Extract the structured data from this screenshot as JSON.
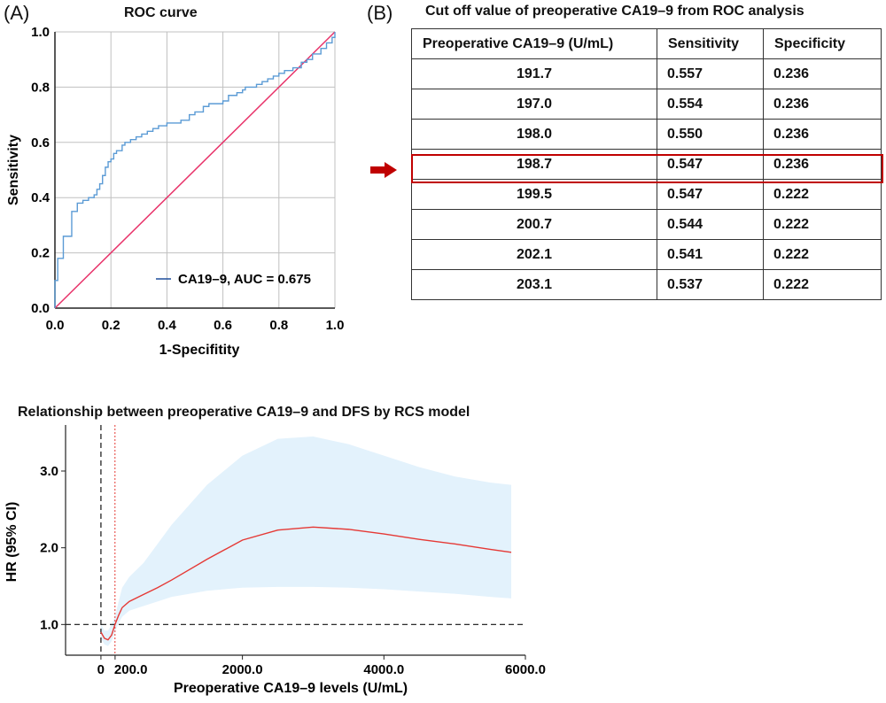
{
  "panels": {
    "a_label": "(A)",
    "b_label": "(B)"
  },
  "colors": {
    "roc_curve": "#5b9bd5",
    "diagonal": "#e8336a",
    "grid": "#c0c0c0",
    "highlight": "#c00000",
    "rcs_line": "#e53935",
    "ci_band": "#e3f2fc",
    "legend_line": "#1f4e9c",
    "reference_line": "#111111"
  },
  "chart_data": [
    {
      "type": "line",
      "title": "ROC curve",
      "xlabel": "1-Specifitity",
      "ylabel": "Sensitivity",
      "xlim": [
        0,
        1
      ],
      "ylim": [
        0,
        1
      ],
      "xticks": [
        "0.0",
        "0.2",
        "0.4",
        "0.6",
        "0.8",
        "1.0"
      ],
      "yticks": [
        "0.0",
        "0.2",
        "0.4",
        "0.6",
        "0.8",
        "1.0"
      ],
      "grid": true,
      "legend_position": "bottom-right",
      "legend": "CA19–9, AUC = 0.675",
      "series": [
        {
          "name": "CA19–9",
          "x": [
            0,
            0,
            0.01,
            0.01,
            0.03,
            0.03,
            0.06,
            0.06,
            0.08,
            0.08,
            0.1,
            0.12,
            0.14,
            0.15,
            0.16,
            0.17,
            0.18,
            0.19,
            0.2,
            0.21,
            0.22,
            0.24,
            0.25,
            0.27,
            0.29,
            0.31,
            0.33,
            0.35,
            0.37,
            0.4,
            0.42,
            0.45,
            0.48,
            0.5,
            0.53,
            0.55,
            0.58,
            0.6,
            0.62,
            0.65,
            0.67,
            0.68,
            0.7,
            0.72,
            0.74,
            0.76,
            0.78,
            0.8,
            0.82,
            0.85,
            0.88,
            0.9,
            0.92,
            0.95,
            0.97,
            0.99,
            1.0
          ],
          "y": [
            0,
            0.1,
            0.1,
            0.18,
            0.2,
            0.26,
            0.26,
            0.35,
            0.37,
            0.38,
            0.39,
            0.4,
            0.41,
            0.43,
            0.45,
            0.48,
            0.51,
            0.53,
            0.54,
            0.56,
            0.57,
            0.59,
            0.6,
            0.61,
            0.62,
            0.63,
            0.64,
            0.65,
            0.66,
            0.67,
            0.67,
            0.68,
            0.7,
            0.71,
            0.73,
            0.74,
            0.74,
            0.75,
            0.77,
            0.78,
            0.79,
            0.8,
            0.8,
            0.81,
            0.82,
            0.83,
            0.84,
            0.85,
            0.86,
            0.87,
            0.89,
            0.9,
            0.92,
            0.94,
            0.96,
            0.98,
            1.0
          ]
        },
        {
          "name": "",
          "x": [
            0,
            1
          ],
          "y": [
            0,
            1
          ]
        }
      ]
    },
    {
      "type": "table",
      "title": "Cut off value of preoperative CA19–9 from ROC analysis",
      "columns": [
        "Preoperative CA19–9 (U/mL)",
        "Sensitivity",
        "Specificity"
      ],
      "rows": [
        [
          "191.7",
          "0.557",
          "0.236"
        ],
        [
          "197.0",
          "0.554",
          "0.236"
        ],
        [
          "198.0",
          "0.550",
          "0.236"
        ],
        [
          "198.7",
          "0.547",
          "0.236"
        ],
        [
          "199.5",
          "0.547",
          "0.222"
        ],
        [
          "200.7",
          "0.544",
          "0.222"
        ],
        [
          "202.1",
          "0.541",
          "0.222"
        ],
        [
          "203.1",
          "0.537",
          "0.222"
        ]
      ],
      "highlighted_row": 3
    },
    {
      "type": "line",
      "title": "Relationship between preoperative CA19–9 and DFS by RCS model",
      "xlabel": "Preoperative CA19–9 levels (U/mL)",
      "ylabel": "HR (95% CI)",
      "xlim": [
        -500,
        6000
      ],
      "ylim": [
        0.6,
        3.6
      ],
      "xticks": [
        "0",
        "200.0",
        "2000.0",
        "4000.0",
        "6000.0"
      ],
      "yticks": [
        "1.0",
        "2.0",
        "3.0"
      ],
      "reference_lines": {
        "hr": 1.0,
        "x_zero": 0,
        "x_cutoff": 198.7
      },
      "series": [
        {
          "name": "HR",
          "x": [
            0,
            50,
            100,
            150,
            198.7,
            250,
            300,
            400,
            600,
            800,
            1000,
            1500,
            2000,
            2500,
            3000,
            3500,
            4000,
            4500,
            5000,
            5500,
            5800
          ],
          "y": [
            0.9,
            0.82,
            0.8,
            0.86,
            1.0,
            1.12,
            1.22,
            1.3,
            1.39,
            1.48,
            1.58,
            1.85,
            2.1,
            2.23,
            2.27,
            2.24,
            2.18,
            2.11,
            2.05,
            1.98,
            1.94
          ]
        },
        {
          "name": "95% CI upper",
          "x": [
            0,
            50,
            100,
            150,
            198.7,
            250,
            300,
            400,
            600,
            800,
            1000,
            1500,
            2000,
            2500,
            3000,
            3500,
            4000,
            4500,
            5000,
            5500,
            5800
          ],
          "y": [
            1.0,
            0.92,
            0.92,
            1.0,
            1.1,
            1.3,
            1.48,
            1.62,
            1.8,
            2.05,
            2.3,
            2.82,
            3.2,
            3.42,
            3.45,
            3.35,
            3.2,
            3.05,
            2.93,
            2.85,
            2.82
          ]
        },
        {
          "name": "95% CI lower",
          "x": [
            0,
            50,
            100,
            150,
            198.7,
            250,
            300,
            400,
            600,
            800,
            1000,
            1500,
            2000,
            2500,
            3000,
            3500,
            4000,
            4500,
            5000,
            5500,
            5800
          ],
          "y": [
            0.82,
            0.74,
            0.72,
            0.78,
            0.9,
            1.02,
            1.1,
            1.18,
            1.24,
            1.3,
            1.36,
            1.44,
            1.48,
            1.49,
            1.49,
            1.48,
            1.46,
            1.43,
            1.4,
            1.36,
            1.34
          ]
        }
      ]
    }
  ]
}
